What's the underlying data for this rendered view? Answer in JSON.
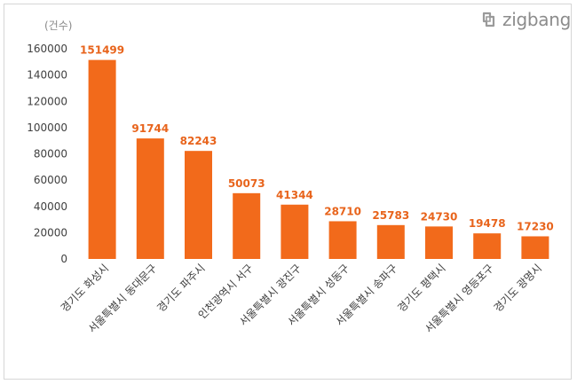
{
  "chart_data": {
    "type": "bar",
    "unit_label": "(건수)",
    "categories": [
      "경기도 화성시",
      "서울특별시 동대문구",
      "경기도 파주시",
      "인천광역시 서구",
      "서울특별시 광진구",
      "서울특별시 성동구",
      "서울특별시 송파구",
      "경기도 평택시",
      "서울특별시 영등포구",
      "경기도 광명시"
    ],
    "values": [
      151499,
      91744,
      82243,
      50073,
      41344,
      28710,
      25783,
      24730,
      19478,
      17230
    ],
    "yticks": [
      "0",
      "20000",
      "40000",
      "60000",
      "80000",
      "100000",
      "120000",
      "140000",
      "160000"
    ],
    "ylim": [
      0,
      160000
    ],
    "bar_color": "#f26a1b",
    "label_color": "#e8641c",
    "grid": false,
    "title": "",
    "xlabel": "",
    "ylabel": ""
  },
  "brand": {
    "name": "zigbang",
    "icon": "zigbang-logo-icon",
    "color": "#8c8c8c"
  }
}
